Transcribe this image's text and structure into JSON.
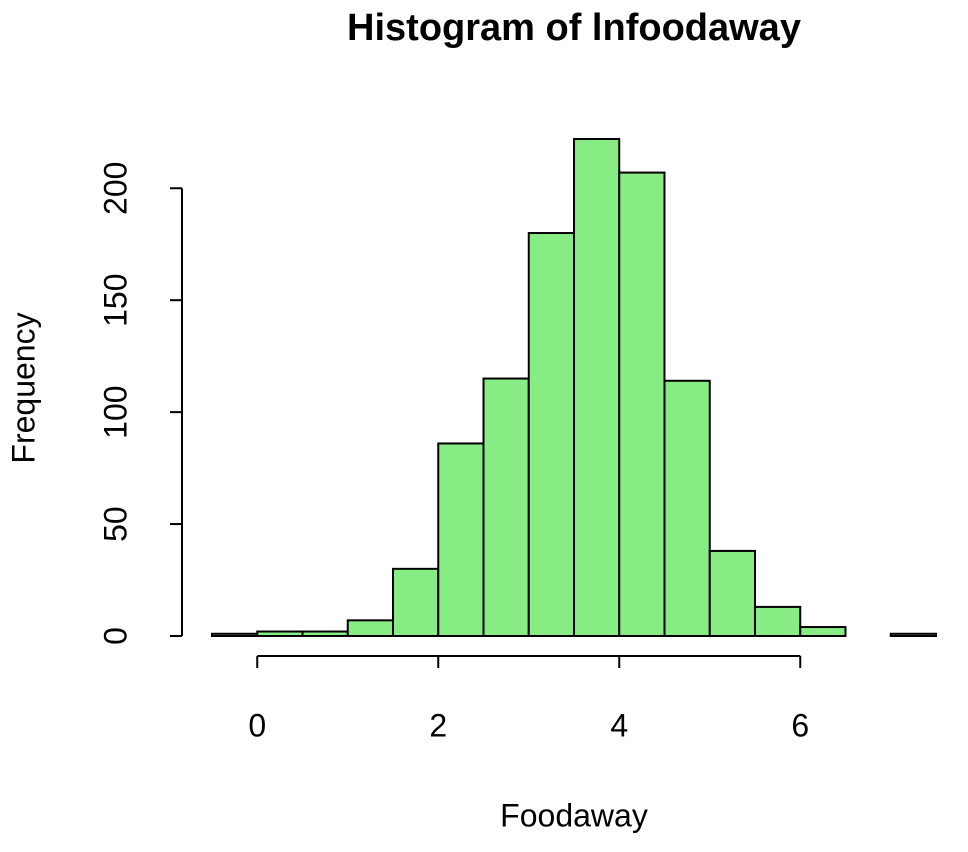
{
  "chart_data": {
    "type": "histogram",
    "title": "Histogram of lnfoodaway",
    "x_label": "Foodaway",
    "y_label": "Frequency",
    "bins": [
      -0.5,
      0,
      0.5,
      1,
      1.5,
      2,
      2.5,
      3,
      3.5,
      4,
      4.5,
      5,
      5.5,
      6,
      6.5,
      7,
      7.5
    ],
    "values": [
      1,
      2,
      2,
      7,
      30,
      86,
      115,
      180,
      222,
      207,
      114,
      38,
      13,
      4,
      0,
      1
    ],
    "color": "#87ec84",
    "xlim": [
      -0.5,
      7.5
    ],
    "xticks": [
      0,
      2,
      4,
      6
    ],
    "ylim": [
      0,
      222
    ],
    "yticks": [
      0,
      50,
      100,
      150,
      200
    ]
  }
}
